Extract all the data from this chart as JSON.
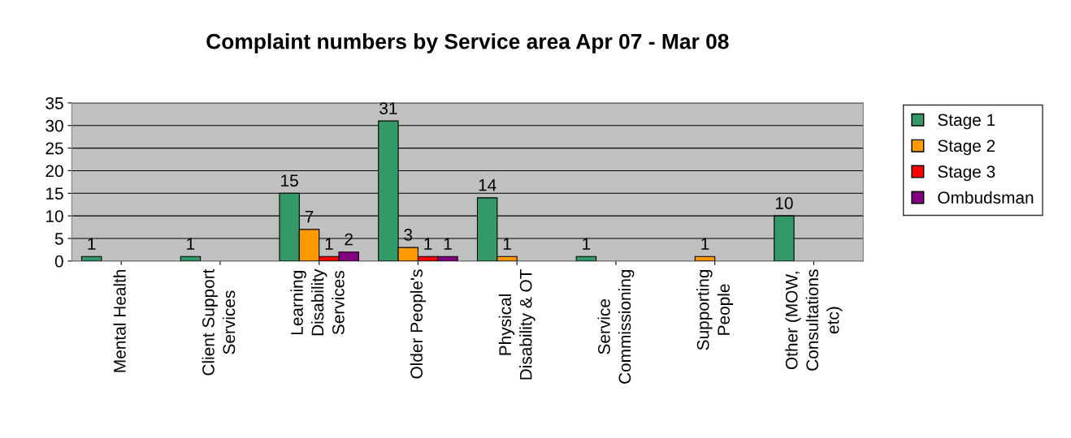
{
  "chart_data": {
    "type": "bar",
    "title": "Complaint numbers by Service area Apr 07 - Mar 08",
    "categories": [
      "Mental Health",
      "Client Support\nServices",
      "Learning\nDisability\nServices",
      "Older People's",
      "Physical\nDisability & OT",
      "Service\nCommissioning",
      "Supporting\nPeople",
      "Other (MOW,\nConsultations\netc)"
    ],
    "series": [
      {
        "name": "Stage 1",
        "color": "#339966",
        "values": [
          1,
          1,
          15,
          31,
          14,
          1,
          null,
          10
        ]
      },
      {
        "name": "Stage 2",
        "color": "#ff9900",
        "values": [
          null,
          null,
          7,
          3,
          1,
          null,
          1,
          null
        ]
      },
      {
        "name": "Stage 3",
        "color": "#ff0000",
        "values": [
          null,
          null,
          1,
          1,
          null,
          null,
          null,
          null
        ]
      },
      {
        "name": "Ombudsman",
        "color": "#800080",
        "values": [
          null,
          null,
          2,
          1,
          null,
          null,
          null,
          null
        ]
      }
    ],
    "ylim": [
      0,
      35
    ],
    "yticks": [
      0,
      5,
      10,
      15,
      20,
      25,
      30,
      35
    ],
    "grid": "y",
    "legend": "right",
    "data_labels": true
  }
}
